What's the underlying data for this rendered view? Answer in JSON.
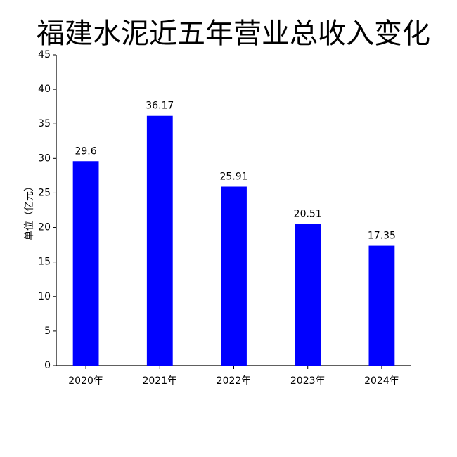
{
  "chart_data": {
    "type": "bar",
    "title": "福建水泥近五年营业总收入变化",
    "ylabel": "单位（亿元）",
    "categories": [
      "2020年",
      "2021年",
      "2022年",
      "2023年",
      "2024年"
    ],
    "values": [
      29.6,
      36.17,
      25.91,
      20.51,
      17.35
    ],
    "color": "#0000ff",
    "ylim": [
      0,
      45
    ],
    "yticks": [
      0,
      5,
      10,
      15,
      20,
      25,
      30,
      35,
      40,
      45
    ],
    "grid": false
  }
}
